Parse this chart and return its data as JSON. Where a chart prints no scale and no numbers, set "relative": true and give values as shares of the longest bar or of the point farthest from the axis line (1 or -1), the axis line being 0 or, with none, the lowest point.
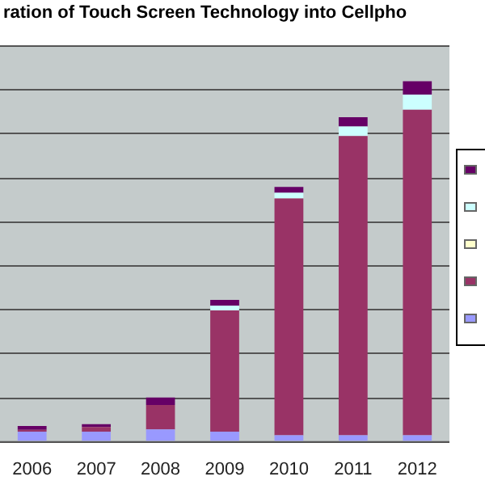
{
  "chart_data": {
    "type": "bar",
    "title": "ration of Touch Screen Technology into Cellpho",
    "categories": [
      "2006",
      "2007",
      "2008",
      "2009",
      "2010",
      "2011",
      "2012"
    ],
    "stacked": true,
    "relative": true,
    "grid": "y",
    "series": [
      {
        "color": "#9999ff",
        "values": [
          0.026,
          0.026,
          0.032,
          0.026,
          0.016,
          0.016,
          0.016
        ]
      },
      {
        "color": "#993366",
        "values": [
          0.005,
          0.013,
          0.068,
          0.337,
          0.658,
          0.832,
          0.905
        ]
      },
      {
        "color": "#ffffcc",
        "values": [
          0,
          0,
          0,
          0,
          0,
          0,
          0
        ]
      },
      {
        "color": "#ccffff",
        "values": [
          0,
          0,
          0,
          0.013,
          0.016,
          0.026,
          0.042
        ]
      },
      {
        "color": "#660066",
        "values": [
          0.011,
          0.008,
          0.021,
          0.016,
          0.016,
          0.026,
          0.037
        ]
      }
    ]
  }
}
